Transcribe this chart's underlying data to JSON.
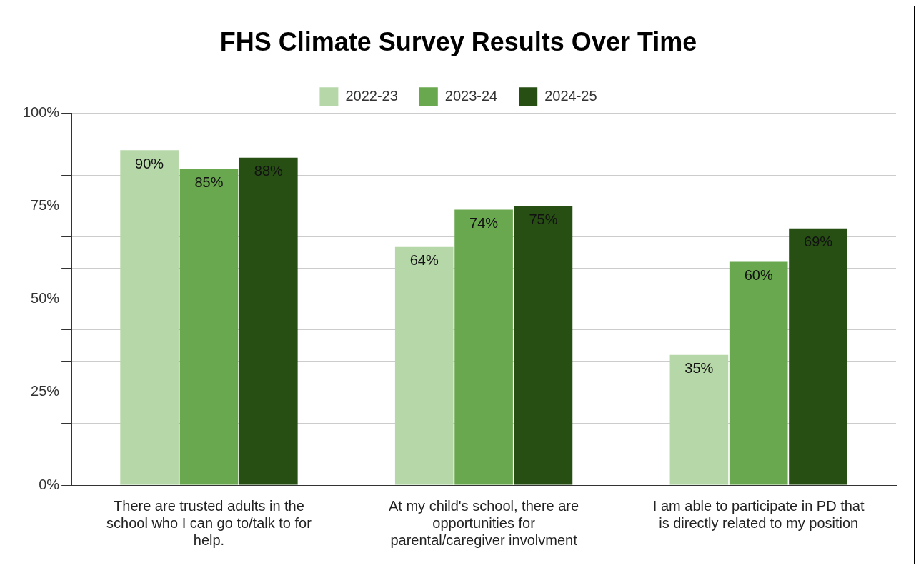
{
  "chart_data": {
    "type": "bar",
    "title": "FHS Climate Survey Results Over Time",
    "categories": [
      "There are trusted adults in the school who I can go to/talk to for help.",
      "At my child's school, there are opportunities for parental/caregiver involvment",
      "I am able to participate in PD that is directly related to my position"
    ],
    "series": [
      {
        "name": "2022-23",
        "color": "#b6d7a8",
        "values": [
          90,
          64,
          35
        ],
        "value_labels": [
          "90%",
          "64%",
          "35%"
        ]
      },
      {
        "name": "2023-24",
        "color": "#6aa84f",
        "values": [
          85,
          74,
          60
        ],
        "value_labels": [
          "85%",
          "74%",
          "60%"
        ]
      },
      {
        "name": "2024-25",
        "color": "#274e13",
        "values": [
          88,
          75,
          69
        ],
        "value_labels": [
          "88%",
          "75%",
          "69%"
        ]
      }
    ],
    "ylim": [
      0,
      100
    ],
    "yticks": [
      {
        "value": 0,
        "label": "0%"
      },
      {
        "value": 8.33,
        "label": null
      },
      {
        "value": 16.67,
        "label": null
      },
      {
        "value": 25,
        "label": "25%"
      },
      {
        "value": 33.33,
        "label": null
      },
      {
        "value": 41.67,
        "label": null
      },
      {
        "value": 50,
        "label": "50%"
      },
      {
        "value": 58.33,
        "label": null
      },
      {
        "value": 66.67,
        "label": null
      },
      {
        "value": 75,
        "label": "75%"
      },
      {
        "value": 83.33,
        "label": null
      },
      {
        "value": 91.67,
        "label": null
      },
      {
        "value": 100,
        "label": "100%"
      }
    ],
    "grid": "y",
    "legend": "top"
  }
}
